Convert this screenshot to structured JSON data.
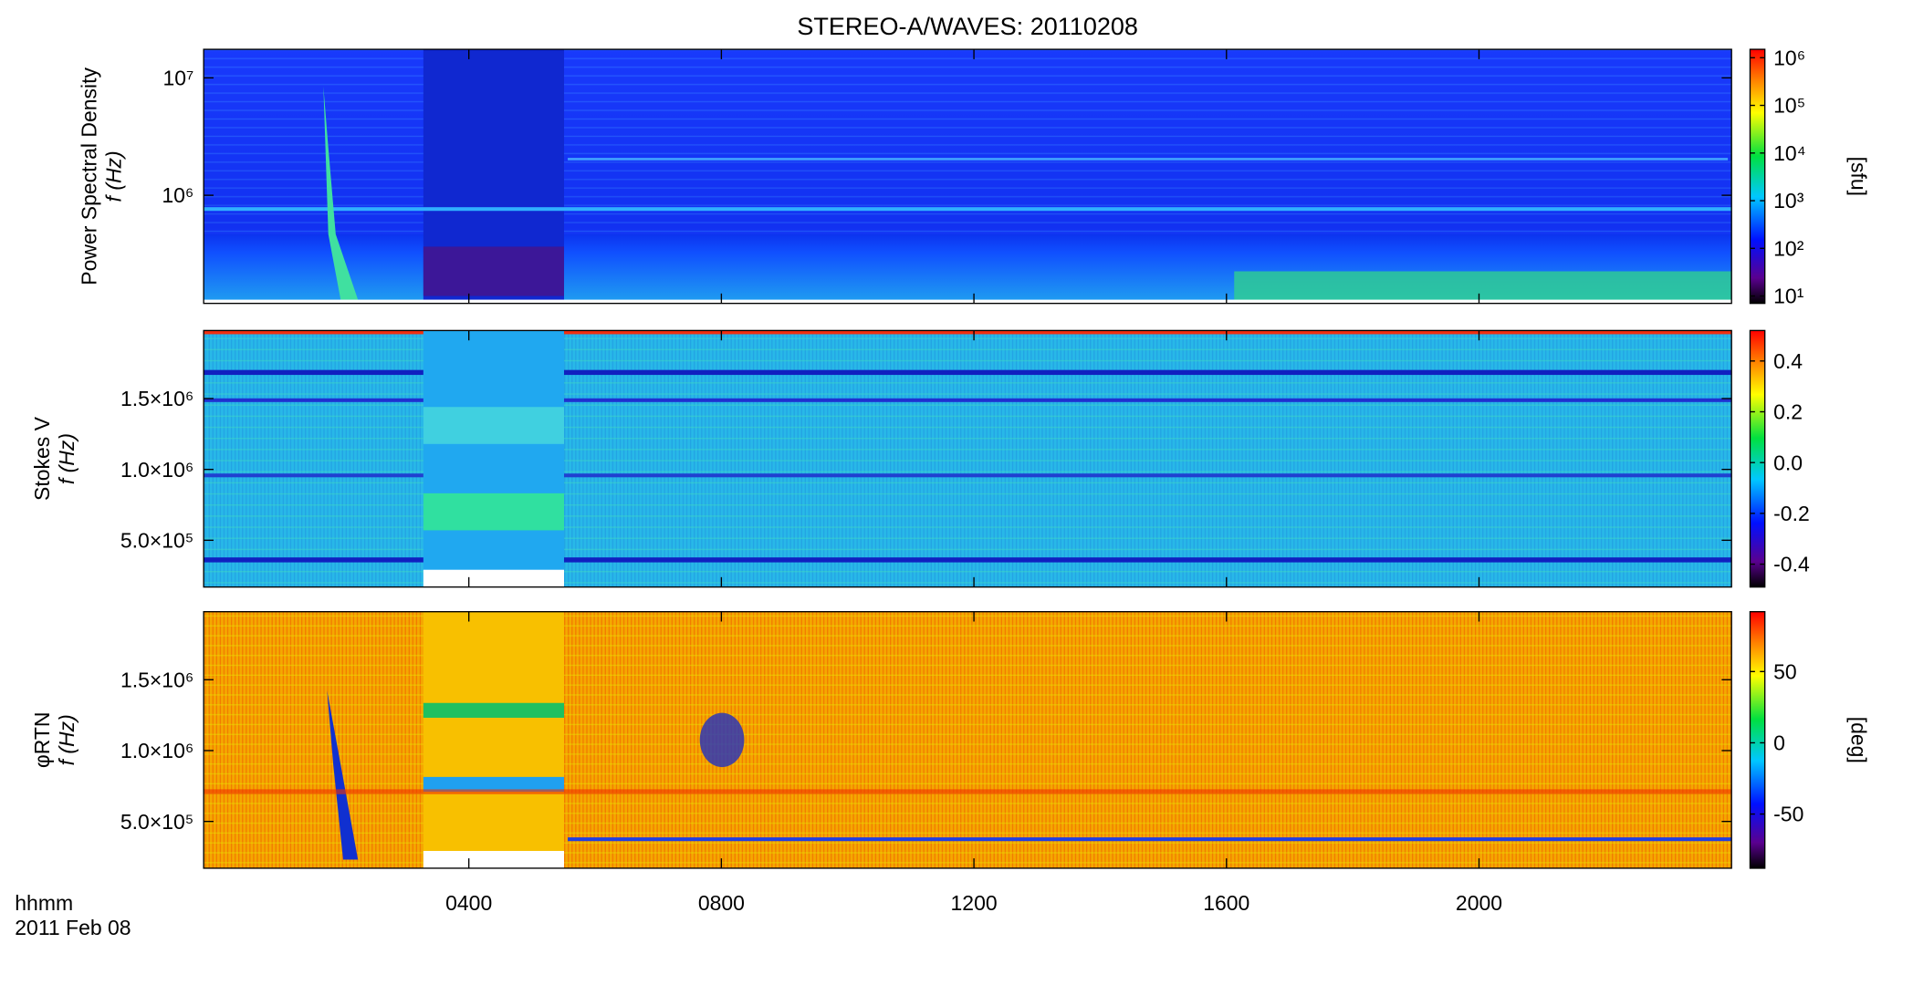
{
  "title": "STEREO-A/WAVES: 20110208",
  "x_axis": {
    "xlim": [
      -0.2,
      24
    ],
    "xticks": [
      {
        "value": 4,
        "label": "0400"
      },
      {
        "value": 8,
        "label": "0800"
      },
      {
        "value": 12,
        "label": "1200"
      },
      {
        "value": 16,
        "label": "1600"
      },
      {
        "value": 20,
        "label": "2000"
      }
    ],
    "label": [
      "hhmm",
      "2011 Feb 08"
    ]
  },
  "chart_data": [
    {
      "type": "heatmap",
      "ylabel": [
        "Power Spectral Density",
        "f (Hz)"
      ],
      "log_y": true,
      "ylim": [
        120000,
        17500000
      ],
      "yticks": [
        {
          "value": 1000000,
          "label": "10⁶"
        },
        {
          "value": 10000000,
          "label": "10⁷"
        }
      ],
      "colorbar": {
        "log": true,
        "clim": [
          7,
          1500000
        ],
        "ticks": [
          {
            "value": 10,
            "label": "10¹"
          },
          {
            "value": 100,
            "label": "10²"
          },
          {
            "value": 1000,
            "label": "10³"
          },
          {
            "value": 10000,
            "label": "10⁴"
          },
          {
            "value": 100000,
            "label": "10⁵"
          },
          {
            "value": 1000000,
            "label": "10⁶"
          }
        ],
        "label": "[sfu]"
      }
    },
    {
      "type": "heatmap",
      "ylabel": [
        "Stokes V",
        "f (Hz)"
      ],
      "log_y": false,
      "ylim": [
        170000,
        1980000
      ],
      "yticks": [
        {
          "value": 500000,
          "label": "5.0×10⁵"
        },
        {
          "value": 1000000,
          "label": "1.0×10⁶"
        },
        {
          "value": 1500000,
          "label": "1.5×10⁶"
        }
      ],
      "colorbar": {
        "log": false,
        "clim": [
          -0.49,
          0.52
        ],
        "ticks": [
          -0.4,
          -0.2,
          {
            "value": 0,
            "label": "0.0"
          },
          0.2,
          0.4
        ]
      }
    },
    {
      "type": "heatmap",
      "ylabel": [
        "φRTN",
        "f (Hz)"
      ],
      "log_y": false,
      "ylim": [
        170000,
        1980000
      ],
      "yticks": [
        {
          "value": 500000,
          "label": "5.0×10⁵"
        },
        {
          "value": 1000000,
          "label": "1.0×10⁶"
        },
        {
          "value": 1500000,
          "label": "1.5×10⁶"
        }
      ],
      "colorbar": {
        "log": false,
        "clim": [
          -88,
          92
        ],
        "ticks": [
          -50,
          0,
          50
        ],
        "label": "[deg]"
      }
    }
  ]
}
